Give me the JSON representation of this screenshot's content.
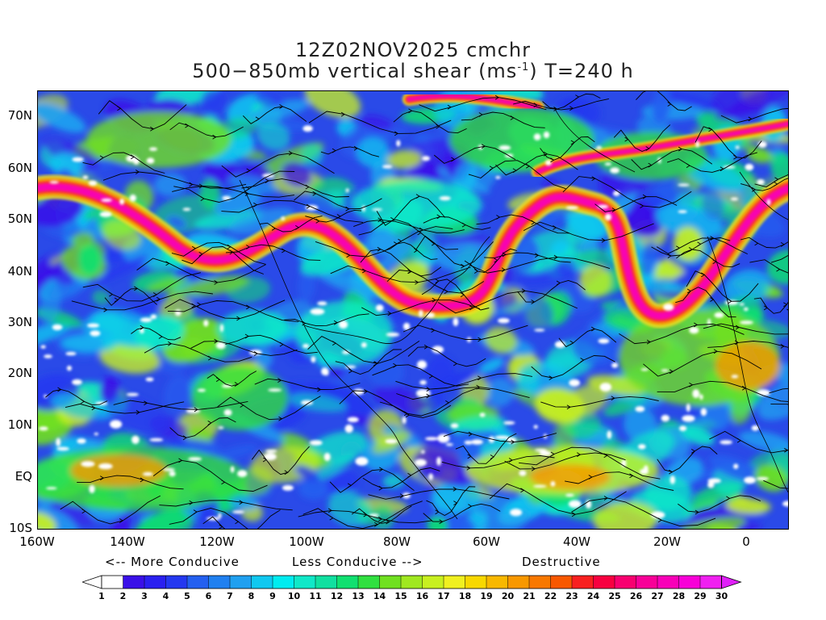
{
  "title": {
    "line1": "12Z02NOV2025 cmchr",
    "line2_prefix": "500−850mb vertical shear (ms",
    "line2_sup": "-1",
    "line2_suffix": ") T=240 h"
  },
  "map": {
    "lat_labels": [
      "70N",
      "60N",
      "50N",
      "40N",
      "30N",
      "20N",
      "10N",
      "EQ",
      "10S"
    ],
    "lon_labels": [
      "160W",
      "140W",
      "120W",
      "100W",
      "80W",
      "60W",
      "40W",
      "20W",
      "0"
    ],
    "field": "500-850mb vertical shear",
    "units": "m/s",
    "streamlines": true,
    "coastlines": true
  },
  "legend": {
    "more_conducive": "<-- More Conducive",
    "less_conducive": "Less Conducive -->",
    "destructive": "Destructive",
    "levels": [
      "1",
      "2",
      "3",
      "4",
      "5",
      "6",
      "7",
      "8",
      "9",
      "10",
      "11",
      "12",
      "13",
      "14",
      "15",
      "16",
      "17",
      "18",
      "19",
      "20",
      "21",
      "22",
      "23",
      "24",
      "25",
      "26",
      "27",
      "28",
      "29",
      "30"
    ],
    "colors": [
      "#ffffff",
      "#3a10e8",
      "#2a20f0",
      "#2438f0",
      "#2460f0",
      "#2080f0",
      "#20a0f0",
      "#10c8f0",
      "#00ecf0",
      "#10e8c8",
      "#10e0a0",
      "#10e070",
      "#30e040",
      "#70e020",
      "#a0e820",
      "#c8f020",
      "#f0f020",
      "#f8d800",
      "#f8b800",
      "#f89800",
      "#f87800",
      "#f85800",
      "#f82020",
      "#f80040",
      "#f80070",
      "#f80098",
      "#f800b8",
      "#f800d8",
      "#f020f0"
    ],
    "end_left_color": "#ffffff",
    "end_right_color": "#e020f8"
  }
}
